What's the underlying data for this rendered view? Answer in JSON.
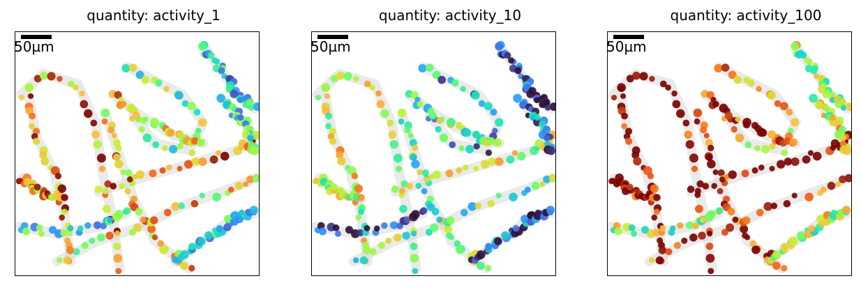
{
  "panels": [
    {
      "title": "quantity: activity_1"
    },
    {
      "title": "quantity: activity_10"
    },
    {
      "title": "quantity: activity_100"
    }
  ],
  "scalebar": {
    "label": "50µm"
  },
  "colormap": "turbo",
  "chart_data": [
    {
      "type": "scatter",
      "title": "quantity: activity_1",
      "quantity": "activity_1",
      "background": "grayscale tissue image",
      "axes": "off"
    },
    {
      "type": "scatter",
      "title": "quantity: activity_10",
      "quantity": "activity_10",
      "background": "grayscale tissue image",
      "axes": "off"
    },
    {
      "type": "scatter",
      "title": "quantity: activity_100",
      "quantity": "activity_100",
      "background": "grayscale tissue image",
      "axes": "off"
    }
  ]
}
